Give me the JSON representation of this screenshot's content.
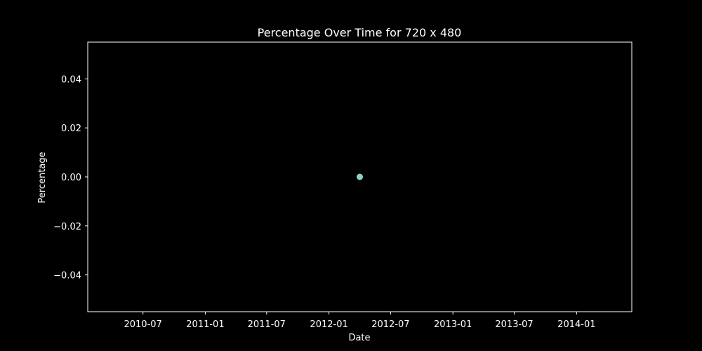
{
  "chart_data": {
    "type": "scatter",
    "title": "Percentage Over Time for 720 x 480",
    "xlabel": "Date",
    "ylabel": "Percentage",
    "x_ticks": [
      "2010-07",
      "2011-01",
      "2011-07",
      "2012-01",
      "2012-07",
      "2013-01",
      "2013-07",
      "2014-01"
    ],
    "x_range": [
      "2010-01-19",
      "2014-06-13"
    ],
    "y_ticks": [
      0.04,
      0.02,
      0.0,
      -0.02,
      -0.04
    ],
    "y_tick_labels": [
      "0.04",
      "0.02",
      "0.00",
      "−0.02",
      "−0.04"
    ],
    "ylim": [
      -0.055,
      0.055
    ],
    "grid": false,
    "series": [
      {
        "name": "Percentage",
        "color": "#8dd3c7",
        "points": [
          {
            "x": "2012-04-01",
            "y": 0.0
          }
        ]
      }
    ]
  },
  "colors": {
    "background": "#000000",
    "foreground": "#ffffff",
    "marker": "#8dd3c7"
  }
}
